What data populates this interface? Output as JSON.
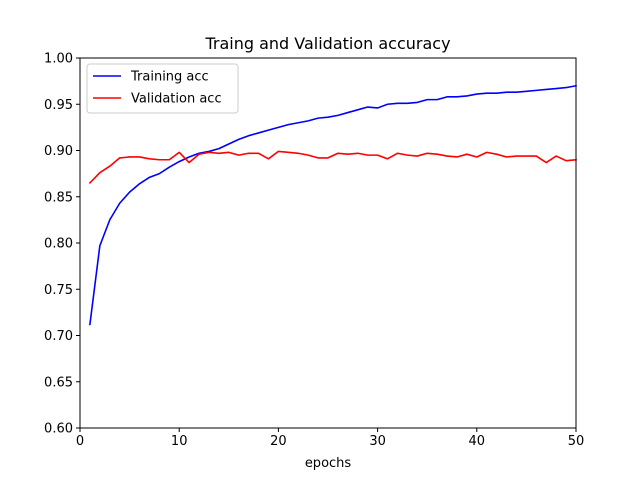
{
  "chart_data": {
    "type": "line",
    "title": "Traing and Validation accuracy",
    "xlabel": "epochs",
    "ylabel": "",
    "xlim": [
      0,
      50
    ],
    "ylim": [
      0.6,
      1.0
    ],
    "xticks": [
      0,
      10,
      20,
      30,
      40,
      50
    ],
    "yticks": [
      0.6,
      0.65,
      0.7,
      0.75,
      0.8,
      0.85,
      0.9,
      0.95,
      1.0
    ],
    "xtick_labels": [
      "0",
      "10",
      "20",
      "30",
      "40",
      "50"
    ],
    "ytick_labels": [
      "0.60",
      "0.65",
      "0.70",
      "0.75",
      "0.80",
      "0.85",
      "0.90",
      "0.95",
      "1.00"
    ],
    "grid": false,
    "legend": "top-left",
    "x": [
      1,
      2,
      3,
      4,
      5,
      6,
      7,
      8,
      9,
      10,
      11,
      12,
      13,
      14,
      15,
      16,
      17,
      18,
      19,
      20,
      21,
      22,
      23,
      24,
      25,
      26,
      27,
      28,
      29,
      30,
      31,
      32,
      33,
      34,
      35,
      36,
      37,
      38,
      39,
      40,
      41,
      42,
      43,
      44,
      45,
      46,
      47,
      48,
      49,
      50
    ],
    "series": [
      {
        "name": "Training acc",
        "color": "#0000ff",
        "values": [
          0.712,
          0.797,
          0.825,
          0.843,
          0.855,
          0.864,
          0.871,
          0.875,
          0.882,
          0.888,
          0.893,
          0.897,
          0.899,
          0.902,
          0.907,
          0.912,
          0.916,
          0.919,
          0.922,
          0.925,
          0.928,
          0.93,
          0.932,
          0.935,
          0.936,
          0.938,
          0.941,
          0.944,
          0.947,
          0.946,
          0.95,
          0.951,
          0.951,
          0.952,
          0.955,
          0.955,
          0.958,
          0.958,
          0.959,
          0.961,
          0.962,
          0.962,
          0.963,
          0.963,
          0.964,
          0.965,
          0.966,
          0.967,
          0.968,
          0.97
        ]
      },
      {
        "name": "Validation acc",
        "color": "#ff0000",
        "values": [
          0.865,
          0.876,
          0.883,
          0.892,
          0.893,
          0.893,
          0.891,
          0.89,
          0.89,
          0.898,
          0.887,
          0.896,
          0.898,
          0.897,
          0.898,
          0.895,
          0.897,
          0.897,
          0.891,
          0.899,
          0.898,
          0.897,
          0.895,
          0.892,
          0.892,
          0.897,
          0.896,
          0.897,
          0.895,
          0.895,
          0.891,
          0.897,
          0.895,
          0.894,
          0.897,
          0.896,
          0.894,
          0.893,
          0.896,
          0.893,
          0.898,
          0.896,
          0.893,
          0.894,
          0.894,
          0.894,
          0.887,
          0.894,
          0.889,
          0.89
        ]
      }
    ]
  }
}
